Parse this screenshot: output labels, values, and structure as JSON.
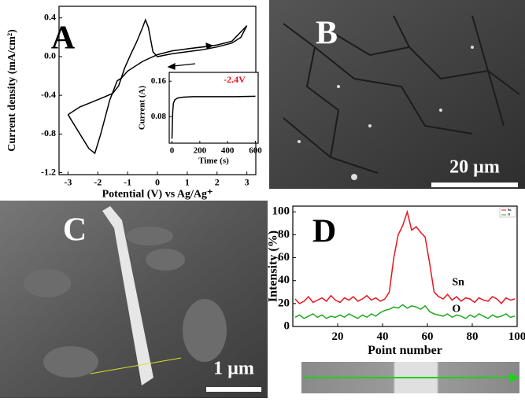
{
  "panels": {
    "labels": [
      "A",
      "B",
      "C",
      "D"
    ],
    "scale_bars": [
      "20 µm",
      "1 µm"
    ]
  },
  "chart_data": [
    {
      "type": "line",
      "x_label": "Potential (V) vs Ag/Ag⁺",
      "y_label": "Current density (mA/cm²)",
      "color": "#000000",
      "x": [
        -3,
        -2.6,
        -2.2,
        -1.8,
        -1.5,
        -1.3,
        -1.1,
        -0.9,
        -0.7,
        -0.5,
        -0.4,
        -0.3,
        -0.15,
        0,
        0.5,
        1,
        1.5,
        2,
        2.5,
        2.8,
        3,
        2.5,
        2,
        1.5,
        1,
        0.5,
        0,
        -0.5,
        -1,
        -1.2,
        -1.35,
        -1.6,
        -1.9,
        -2.1,
        -2.3,
        -2.6,
        -3
      ],
      "values": [
        -0.6,
        -0.52,
        -0.47,
        -0.42,
        -0.38,
        -0.3,
        -0.12,
        0.02,
        0.15,
        0.3,
        0.38,
        0.3,
        0.05,
        0.0,
        0.03,
        0.05,
        0.07,
        0.1,
        0.14,
        0.2,
        0.32,
        0.16,
        0.12,
        0.1,
        0.08,
        0.06,
        0.02,
        -0.05,
        -0.15,
        -0.22,
        -0.25,
        -0.45,
        -0.8,
        -1.0,
        -0.95,
        -0.8,
        -0.6
      ],
      "xlim": [
        -3.3,
        3.3
      ],
      "xticks": [
        -3,
        -2,
        -1,
        0,
        1,
        2,
        3
      ],
      "ylim": [
        -1.22,
        0.52
      ],
      "yticks": [
        -1.2,
        -0.8,
        -0.4,
        {
          "value": 0,
          "label": "0.0"
        },
        0.4
      ]
    },
    {
      "type": "line",
      "x_label": "Time (s)",
      "y_label": "Current (A)",
      "annotation": "-2.4V",
      "color": "#000000",
      "x": [
        0,
        5,
        10,
        20,
        40,
        80,
        150,
        300,
        450,
        600
      ],
      "values": [
        0.03,
        0.09,
        0.11,
        0.118,
        0.122,
        0.124,
        0.125,
        0.125,
        0.125,
        0.126
      ],
      "xlim": [
        -20,
        620
      ],
      "xticks": [
        0,
        200,
        400,
        600
      ],
      "ylim": [
        0.02,
        0.18
      ],
      "yticks": [
        0.08,
        0.16
      ]
    },
    {
      "type": "line",
      "x_label": "Point number",
      "y_label": "Intensity (%)",
      "legend": "upper right",
      "x": [
        1,
        3,
        5,
        7,
        9,
        11,
        13,
        15,
        17,
        19,
        21,
        23,
        25,
        27,
        29,
        31,
        33,
        35,
        37,
        39,
        41,
        43,
        45,
        47,
        49,
        51,
        53,
        55,
        57,
        59,
        61,
        63,
        65,
        67,
        69,
        71,
        73,
        75,
        77,
        79,
        81,
        83,
        85,
        87,
        89,
        91,
        93,
        95,
        97,
        99
      ],
      "series": [
        {
          "name": "Sn",
          "color": "#e8141e",
          "values": [
            24,
            20,
            22,
            26,
            21,
            23,
            25,
            22,
            27,
            23,
            21,
            25,
            23,
            26,
            22,
            24,
            27,
            23,
            25,
            22,
            24,
            30,
            60,
            80,
            88,
            100,
            84,
            87,
            82,
            78,
            55,
            30,
            26,
            24,
            28,
            23,
            26,
            22,
            25,
            24,
            21,
            25,
            23,
            22,
            26,
            24,
            20,
            25,
            23,
            24
          ]
        },
        {
          "name": "O",
          "color": "#1fa81f",
          "values": [
            8,
            10,
            7,
            9,
            11,
            8,
            10,
            7,
            9,
            8,
            10,
            8,
            11,
            9,
            7,
            10,
            8,
            11,
            9,
            12,
            14,
            15,
            17,
            16,
            19,
            16,
            18,
            17,
            15,
            18,
            13,
            11,
            10,
            9,
            11,
            8,
            10,
            9,
            7,
            10,
            8,
            11,
            9,
            7,
            10,
            8,
            9,
            11,
            8,
            9
          ]
        }
      ],
      "xlim": [
        0,
        100
      ],
      "xticks": [
        20,
        40,
        60,
        80,
        100
      ],
      "ylim": [
        0,
        105
      ],
      "yticks": [
        0,
        20,
        40,
        60,
        80,
        100
      ]
    }
  ]
}
